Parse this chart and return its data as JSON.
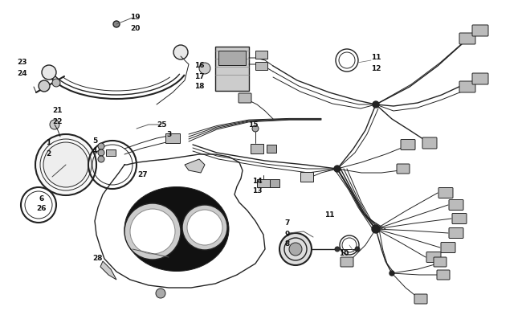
{
  "bg_color": "#ffffff",
  "lc": "#222222",
  "figsize": [
    6.5,
    3.87
  ],
  "dpi": 100,
  "labels": [
    [
      "19",
      168,
      22
    ],
    [
      "20",
      168,
      35
    ],
    [
      "23",
      28,
      78
    ],
    [
      "24",
      28,
      91
    ],
    [
      "21",
      72,
      138
    ],
    [
      "22",
      72,
      151
    ],
    [
      "1",
      60,
      178
    ],
    [
      "2",
      60,
      191
    ],
    [
      "5",
      118,
      175
    ],
    [
      "4",
      118,
      188
    ],
    [
      "25",
      202,
      155
    ],
    [
      "3",
      210,
      168
    ],
    [
      "6",
      52,
      247
    ],
    [
      "26",
      52,
      260
    ],
    [
      "27",
      178,
      218
    ],
    [
      "28",
      122,
      322
    ],
    [
      "16",
      248,
      82
    ],
    [
      "17",
      248,
      95
    ],
    [
      "18",
      248,
      108
    ],
    [
      "15",
      315,
      155
    ],
    [
      "14",
      320,
      225
    ],
    [
      "13",
      320,
      238
    ],
    [
      "7",
      358,
      278
    ],
    [
      "9",
      358,
      291
    ],
    [
      "8",
      358,
      304
    ],
    [
      "10",
      428,
      315
    ],
    [
      "11",
      410,
      268
    ],
    [
      "11",
      468,
      72
    ],
    [
      "12",
      468,
      85
    ]
  ]
}
